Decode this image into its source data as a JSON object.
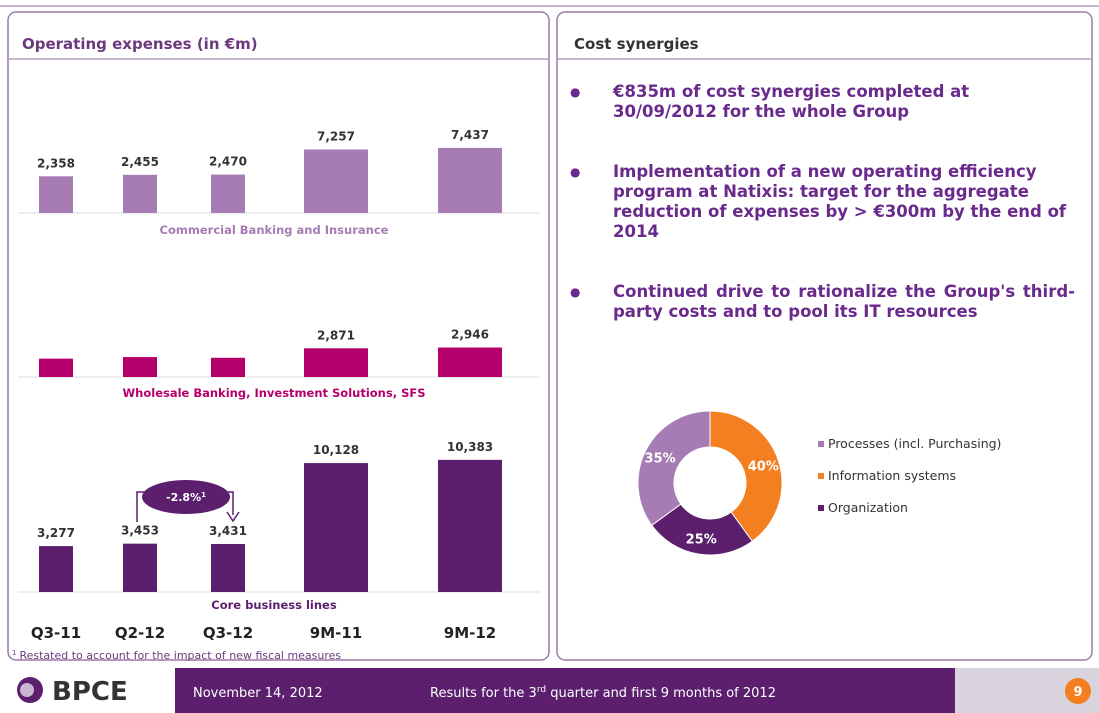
{
  "left_panel": {
    "title": "Operating expenses (in €m)"
  },
  "right_panel": {
    "title": "Cost synergies",
    "bullets": [
      "€835m of cost synergies completed at 30/09/2012 for the whole Group",
      "Implementation of a new operating efficiency program at Natixis: target for the aggregate reduction of expenses by > €300m by the end of 2014",
      "Continued drive to rationalize the Group's third-party costs and to pool its IT resources"
    ]
  },
  "chart_data": [
    {
      "type": "bar",
      "subtitle": "Commercial Banking and Insurance",
      "color": "#a77bb4",
      "ylim": [
        0,
        9000
      ],
      "y2lim": [
        0,
        16000
      ],
      "series": [
        {
          "values": [
            2358,
            2455,
            2470,
            null,
            null
          ],
          "value_labels": [
            "2,358",
            "2,455",
            "2,470",
            null,
            null
          ]
        },
        {
          "axis": "y2",
          "values": [
            null,
            null,
            null,
            7257,
            7437
          ],
          "value_labels": [
            null,
            null,
            null,
            "7,257",
            "7,437"
          ]
        }
      ]
    },
    {
      "type": "bar",
      "subtitle": "Wholesale Banking, Investment Solutions, SFS",
      "color": "#b5006b",
      "ylim": [
        0,
        7000
      ],
      "y2lim": [
        0,
        14000
      ],
      "series": [
        {
          "values": [
            919,
            998,
            961,
            null,
            null
          ],
          "value_labels": [
            null,
            null,
            null,
            null,
            null
          ]
        },
        {
          "axis": "y2",
          "values": [
            null,
            null,
            null,
            2871,
            2946
          ],
          "value_labels": [
            null,
            null,
            null,
            "2,871",
            "2,946"
          ]
        }
      ]
    },
    {
      "type": "bar",
      "subtitle": "Core business lines",
      "color": "#5b1f6e",
      "categories": [
        "Q3-11",
        "Q2-12",
        "Q3-12",
        "9M-11",
        "9M-12"
      ],
      "ylim": [
        0,
        10000
      ],
      "y2lim": [
        0,
        11000
      ],
      "annotation": "-2.8%",
      "annotation_mark": "1",
      "series": [
        {
          "values": [
            3277,
            3453,
            3431,
            null,
            null
          ],
          "value_labels": [
            "3,277",
            "3,453",
            "3,431",
            null,
            null
          ]
        },
        {
          "axis": "y2",
          "values": [
            null,
            null,
            null,
            10128,
            10383
          ],
          "value_labels": [
            null,
            null,
            null,
            "10,128",
            "10,383"
          ]
        }
      ]
    },
    {
      "type": "donut",
      "categories": [
        "Processes (incl. Purchasing)",
        "Information systems",
        "Organization"
      ],
      "colors": [
        "#a77bb4",
        "#f47f20",
        "#5b1f6e"
      ],
      "values": [
        35,
        40,
        25
      ],
      "value_labels": [
        "35%",
        "40%",
        "25%"
      ]
    }
  ],
  "footnote": {
    "mark": "1",
    "text": "Restated to account for the impact of new fiscal measures"
  },
  "footer": {
    "logo": "BPCE",
    "date": "November 14, 2012",
    "title": [
      "Results for the 3",
      "rd",
      " quarter and first 9 months of 2012"
    ],
    "page": "9"
  }
}
